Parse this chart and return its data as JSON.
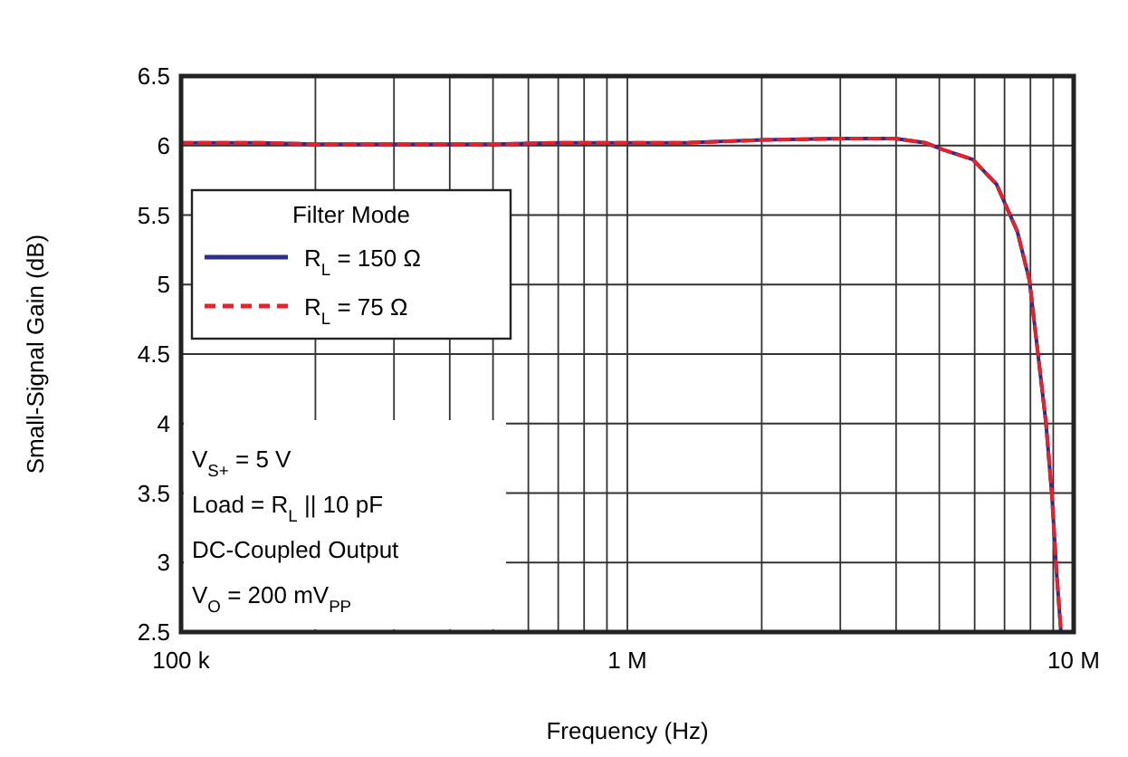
{
  "chart_data": {
    "type": "line",
    "xlabel": "Frequency (Hz)",
    "ylabel": "Small-Signal Gain (dB)",
    "log": "x",
    "grid": true,
    "legend": "left",
    "legend_title": "Filter Mode",
    "x": [
      100000,
      150000,
      200000,
      300000,
      500000,
      700000,
      1000000,
      1360000,
      2000000,
      3000000,
      3990000,
      4650000,
      5100000,
      5940000,
      6720000,
      7480000,
      7960000,
      8340000,
      8670000,
      8940000,
      9140000,
      9360000
    ],
    "xlim": [
      100000,
      10000000
    ],
    "xticks": [
      {
        "value": 100000,
        "label": "100 k"
      },
      {
        "value": 200000,
        "label": null
      },
      {
        "value": 300000,
        "label": null
      },
      {
        "value": 400000,
        "label": null
      },
      {
        "value": 500000,
        "label": null
      },
      {
        "value": 600000,
        "label": null
      },
      {
        "value": 700000,
        "label": null
      },
      {
        "value": 800000,
        "label": null
      },
      {
        "value": 900000,
        "label": null
      },
      {
        "value": 1000000,
        "label": "1 M"
      },
      {
        "value": 2000000,
        "label": null
      },
      {
        "value": 3000000,
        "label": null
      },
      {
        "value": 4000000,
        "label": null
      },
      {
        "value": 5000000,
        "label": null
      },
      {
        "value": 6000000,
        "label": null
      },
      {
        "value": 7000000,
        "label": null
      },
      {
        "value": 8000000,
        "label": null
      },
      {
        "value": 9000000,
        "label": null
      },
      {
        "value": 10000000,
        "label": "10 M"
      }
    ],
    "ylim": [
      2.5,
      6.5
    ],
    "yticks": [
      2.5,
      3,
      3.5,
      4,
      4.5,
      5,
      5.5,
      6,
      6.5
    ],
    "series": [
      {
        "name": "R$_{L}$ = 150 Ω",
        "color": "#2b2f8e",
        "line_style": "solid",
        "values": [
          6.02,
          6.02,
          6.01,
          6.01,
          6.01,
          6.02,
          6.02,
          6.02,
          6.04,
          6.05,
          6.05,
          6.02,
          5.97,
          5.9,
          5.72,
          5.38,
          5.03,
          4.47,
          4.0,
          3.48,
          2.96,
          2.51
        ]
      },
      {
        "name": "R$_{L}$ = 75 Ω",
        "color": "#e8202a",
        "line_style": "dashed",
        "values": [
          6.02,
          6.02,
          6.01,
          6.01,
          6.01,
          6.02,
          6.02,
          6.02,
          6.04,
          6.05,
          6.05,
          6.02,
          5.97,
          5.9,
          5.72,
          5.38,
          5.03,
          4.47,
          4.0,
          3.48,
          2.96,
          2.51
        ]
      }
    ],
    "annotations": [
      "V$_{S+}$ = 5 V",
      "Load = R$_{L}$ || 10 pF",
      "DC-Coupled Output",
      "V$_{O}$ = 200 mV$_{PP}$"
    ]
  }
}
